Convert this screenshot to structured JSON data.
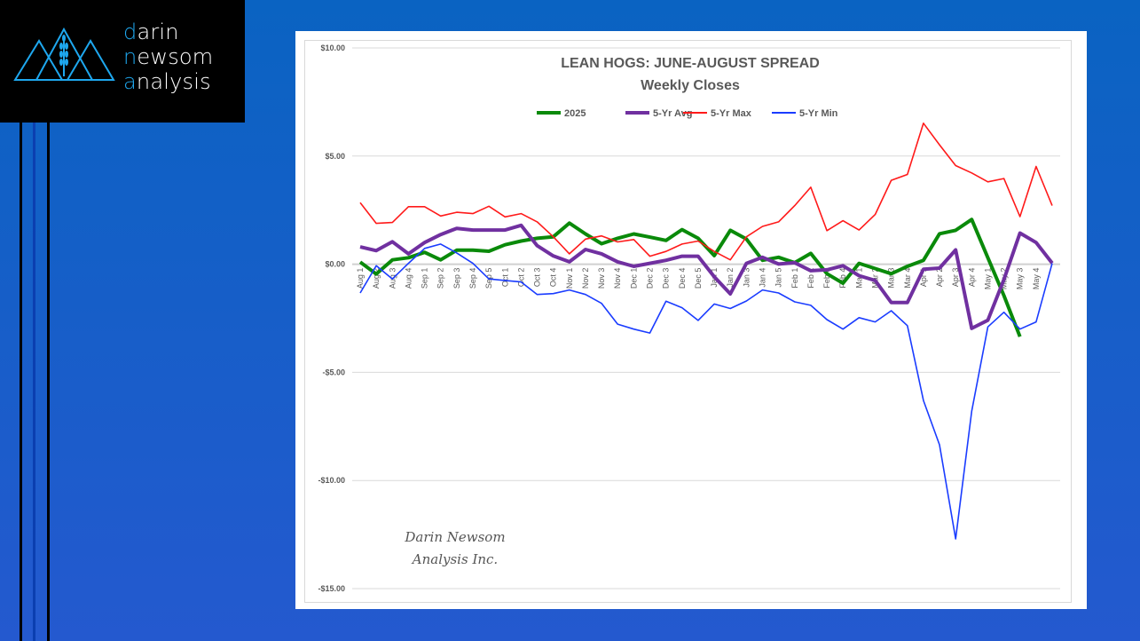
{
  "logo": {
    "line1_first": "d",
    "line1_rest": "arin",
    "line2_first": "n",
    "line2_mid": "ew",
    "line2_rest": "som",
    "line3_first": "a",
    "line3_rest": "nalysis"
  },
  "watermark": {
    "line1": "Darin Newsom",
    "line2": "Analysis Inc."
  },
  "chart_data": {
    "type": "line",
    "title": "LEAN HOGS: JUNE-AUGUST SPREAD",
    "subtitle": "Weekly Closes",
    "xlabel": "",
    "ylabel": "",
    "ylim": [
      -15,
      10
    ],
    "yticks": [
      10,
      5,
      0,
      -5,
      -10,
      -15
    ],
    "ytick_labels": [
      "$10.00",
      "$5.00",
      "$0.00",
      "-$5.00",
      "-$10.00",
      "-$15.00"
    ],
    "grid": true,
    "legend_position": "top-center",
    "categories": [
      "Aug 1",
      "Aug 2",
      "Aug 3",
      "Aug 4",
      "Sep 1",
      "Sep 2",
      "Sep 3",
      "Sep 4",
      "Sep 5",
      "Oct 1",
      "Oct 2",
      "Oct 3",
      "Oct 4",
      "Nov 1",
      "Nov 2",
      "Nov 3",
      "Nov 4",
      "Dec 1",
      "Dec 2",
      "Dec 3",
      "Dec 4",
      "Dec 5",
      "Jan 1",
      "Jan 2",
      "Jan 3",
      "Jan 4",
      "Jan 5",
      "Feb 1",
      "Feb 2",
      "Feb 3",
      "Feb 4",
      "Mar 1",
      "Mar 2",
      "Mar 3",
      "Mar 4",
      "Apr 1",
      "Apr 2",
      "Apr 3",
      "Apr 4",
      "May 1",
      "May 2",
      "May 3",
      "May 4",
      ""
    ],
    "series": [
      {
        "name": "2025",
        "color": "#0a8a0a",
        "width": 4,
        "values": [
          0.1,
          -0.45,
          0.2,
          0.3,
          0.55,
          0.2,
          0.65,
          0.65,
          0.6,
          0.9,
          1.07,
          1.2,
          1.27,
          1.9,
          1.4,
          0.95,
          1.2,
          1.4,
          1.25,
          1.1,
          1.6,
          1.2,
          0.4,
          1.57,
          1.16,
          0.18,
          0.32,
          0.07,
          0.5,
          -0.44,
          -0.88,
          0.04,
          -0.2,
          -0.44,
          -0.1,
          0.18,
          1.41,
          1.57,
          2.07,
          0.3,
          -1.45,
          -3.35,
          null,
          null
        ]
      },
      {
        "name": "5-Yr Avg",
        "color": "#7030a0",
        "width": 4,
        "values": [
          0.8,
          0.63,
          1.04,
          0.48,
          1.0,
          1.37,
          1.66,
          1.58,
          1.58,
          1.58,
          1.8,
          0.86,
          0.38,
          0.11,
          0.68,
          0.48,
          0.11,
          -0.1,
          0.04,
          0.18,
          0.37,
          0.37,
          -0.58,
          -1.37,
          0.04,
          0.32,
          0.01,
          0.07,
          -0.3,
          -0.26,
          -0.07,
          -0.53,
          -0.75,
          -1.77,
          -1.77,
          -0.23,
          -0.18,
          0.66,
          -2.97,
          -2.59,
          -0.71,
          1.44,
          1.0,
          0.05
        ]
      },
      {
        "name": "5-Yr Max",
        "color": "#ff1a1a",
        "width": 1.6,
        "values": [
          2.85,
          1.89,
          1.93,
          2.66,
          2.66,
          2.23,
          2.4,
          2.34,
          2.68,
          2.19,
          2.34,
          1.96,
          1.27,
          0.48,
          1.16,
          1.31,
          1.03,
          1.14,
          0.37,
          0.59,
          0.93,
          1.07,
          0.59,
          0.2,
          1.27,
          1.75,
          1.96,
          2.71,
          3.56,
          1.55,
          2.01,
          1.58,
          2.3,
          3.88,
          4.15,
          6.52,
          5.52,
          4.56,
          4.22,
          3.81,
          3.96,
          2.2,
          4.52,
          2.71
        ]
      },
      {
        "name": "5-Yr Min",
        "color": "#1a3cff",
        "width": 1.6,
        "values": [
          -1.33,
          -0.07,
          -0.68,
          0.04,
          0.73,
          0.93,
          0.52,
          0.04,
          -0.68,
          -0.75,
          -0.82,
          -1.4,
          -1.36,
          -1.19,
          -1.4,
          -1.81,
          -2.77,
          -3.0,
          -3.18,
          -1.71,
          -2.01,
          -2.6,
          -1.84,
          -2.05,
          -1.7,
          -1.19,
          -1.33,
          -1.74,
          -1.9,
          -2.56,
          -3.0,
          -2.47,
          -2.67,
          -2.15,
          -2.84,
          -6.3,
          -8.35,
          -12.7,
          -6.8,
          -2.9,
          -2.22,
          -3.0,
          -2.67,
          0.04
        ]
      }
    ]
  }
}
